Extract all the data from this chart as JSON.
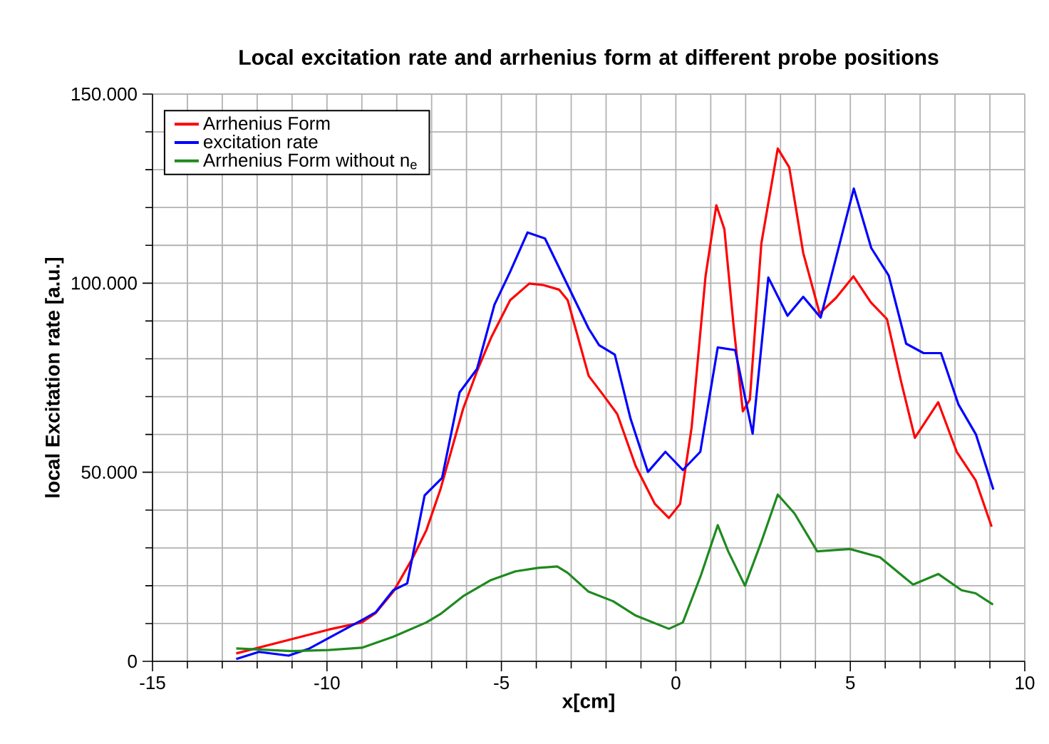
{
  "chart_data": {
    "type": "line",
    "title": "Local excitation rate and arrhenius form at different probe positions",
    "xlabel": "x[cm]",
    "ylabel": "local Excitation rate [a.u.]",
    "xlim": [
      -15,
      10
    ],
    "ylim": [
      0,
      150000
    ],
    "xticks": [
      -15,
      {
        "value": -14,
        "label": null
      },
      {
        "value": -13,
        "label": null
      },
      {
        "value": -12,
        "label": null
      },
      {
        "value": -11,
        "label": null
      },
      -10,
      {
        "value": -9,
        "label": null
      },
      {
        "value": -8,
        "label": null
      },
      {
        "value": -7,
        "label": null
      },
      {
        "value": -6,
        "label": null
      },
      -5,
      {
        "value": -4,
        "label": null
      },
      {
        "value": -3,
        "label": null
      },
      {
        "value": -2,
        "label": null
      },
      {
        "value": -1,
        "label": null
      },
      0,
      {
        "value": 1,
        "label": null
      },
      {
        "value": 2,
        "label": null
      },
      {
        "value": 3,
        "label": null
      },
      {
        "value": 4,
        "label": null
      },
      5,
      {
        "value": 6,
        "label": null
      },
      {
        "value": 7,
        "label": null
      },
      {
        "value": 8,
        "label": null
      },
      {
        "value": 9,
        "label": null
      },
      10
    ],
    "yticks": [
      0,
      {
        "value": 10000,
        "label": null
      },
      {
        "value": 20000,
        "label": null
      },
      {
        "value": 30000,
        "label": null
      },
      {
        "value": 40000,
        "label": null
      },
      {
        "value": 50000,
        "label": "50.000"
      },
      {
        "value": 60000,
        "label": null
      },
      {
        "value": 70000,
        "label": null
      },
      {
        "value": 80000,
        "label": null
      },
      {
        "value": 90000,
        "label": null
      },
      {
        "value": 100000,
        "label": "100.000"
      },
      {
        "value": 110000,
        "label": null
      },
      {
        "value": 120000,
        "label": null
      },
      {
        "value": 130000,
        "label": null
      },
      {
        "value": 140000,
        "label": null
      },
      {
        "value": 150000,
        "label": "150.000"
      }
    ],
    "grid": true,
    "legend": "top left",
    "marker": "none",
    "line_style": "solid",
    "series": [
      {
        "name": "Arrhenius Form",
        "color": "#ff0000",
        "x": [
          -12.6,
          -11.0,
          -9.95,
          -9.0,
          -8.6,
          -8.1,
          -7.55,
          -7.15,
          -6.75,
          -6.1,
          -5.7,
          -5.3,
          -4.75,
          -4.2,
          -3.8,
          -3.35,
          -3.1,
          -2.5,
          -2.08,
          -1.68,
          -1.15,
          -0.6,
          -0.2,
          0.12,
          0.45,
          0.85,
          1.16,
          1.39,
          1.65,
          1.92,
          2.12,
          2.45,
          2.92,
          3.25,
          3.65,
          4.12,
          4.59,
          5.09,
          5.59,
          6.05,
          6.45,
          6.85,
          7.52,
          8.05,
          8.59,
          9.05
        ],
        "values": [
          2100,
          5900,
          8400,
          10300,
          12800,
          18400,
          27200,
          34700,
          45400,
          66700,
          76700,
          85500,
          95500,
          99900,
          99500,
          98300,
          95500,
          75500,
          70400,
          65400,
          51600,
          41600,
          37900,
          41600,
          61700,
          101800,
          120600,
          114300,
          89200,
          66100,
          69200,
          110500,
          135600,
          130600,
          108000,
          92000,
          96100,
          101800,
          94900,
          90500,
          74200,
          59100,
          68500,
          55400,
          47900,
          35600
        ]
      },
      {
        "name": "excitation rate",
        "color": "#0000ff",
        "x": [
          -12.6,
          -11.95,
          -11.1,
          -10.5,
          -9.0,
          -8.6,
          -8.1,
          -7.7,
          -7.2,
          -6.7,
          -6.2,
          -5.7,
          -5.2,
          -4.75,
          -4.25,
          -3.75,
          -2.5,
          -2.2,
          -1.75,
          -1.3,
          -0.8,
          -0.3,
          0.2,
          0.7,
          1.2,
          1.7,
          2.2,
          2.65,
          3.2,
          3.65,
          4.15,
          5.1,
          5.6,
          6.1,
          6.6,
          7.1,
          7.6,
          8.1,
          8.6,
          9.1
        ],
        "values": [
          600,
          2500,
          1500,
          3400,
          10900,
          13000,
          18800,
          20600,
          43900,
          48500,
          71100,
          77300,
          94300,
          103000,
          113400,
          111800,
          88000,
          83600,
          81100,
          64200,
          50100,
          55400,
          50600,
          55400,
          83000,
          82300,
          60200,
          101500,
          91400,
          96400,
          90900,
          125000,
          109300,
          102000,
          84000,
          81500,
          81500,
          67900,
          60000,
          45400
        ]
      },
      {
        "name": "Arrhenius Form without n$_{e}$",
        "color": "#1e8a1e",
        "x": [
          -12.6,
          -11.0,
          -9.95,
          -9.0,
          -8.1,
          -7.15,
          -6.75,
          -6.1,
          -5.3,
          -4.6,
          -3.95,
          -3.4,
          -3.1,
          -2.5,
          -1.8,
          -1.15,
          -0.2,
          0.2,
          0.72,
          1.2,
          1.5,
          1.98,
          2.45,
          2.92,
          3.4,
          4.05,
          4.99,
          5.85,
          6.8,
          7.52,
          8.19,
          8.59,
          9.09
        ],
        "values": [
          3400,
          2700,
          3000,
          3600,
          6500,
          10300,
          12500,
          17200,
          21500,
          23800,
          24700,
          25100,
          23400,
          18400,
          15900,
          12100,
          8600,
          10300,
          22800,
          36000,
          29100,
          20000,
          31600,
          44100,
          39100,
          29100,
          29700,
          27500,
          20300,
          23100,
          18800,
          18000,
          15000
        ]
      }
    ]
  }
}
